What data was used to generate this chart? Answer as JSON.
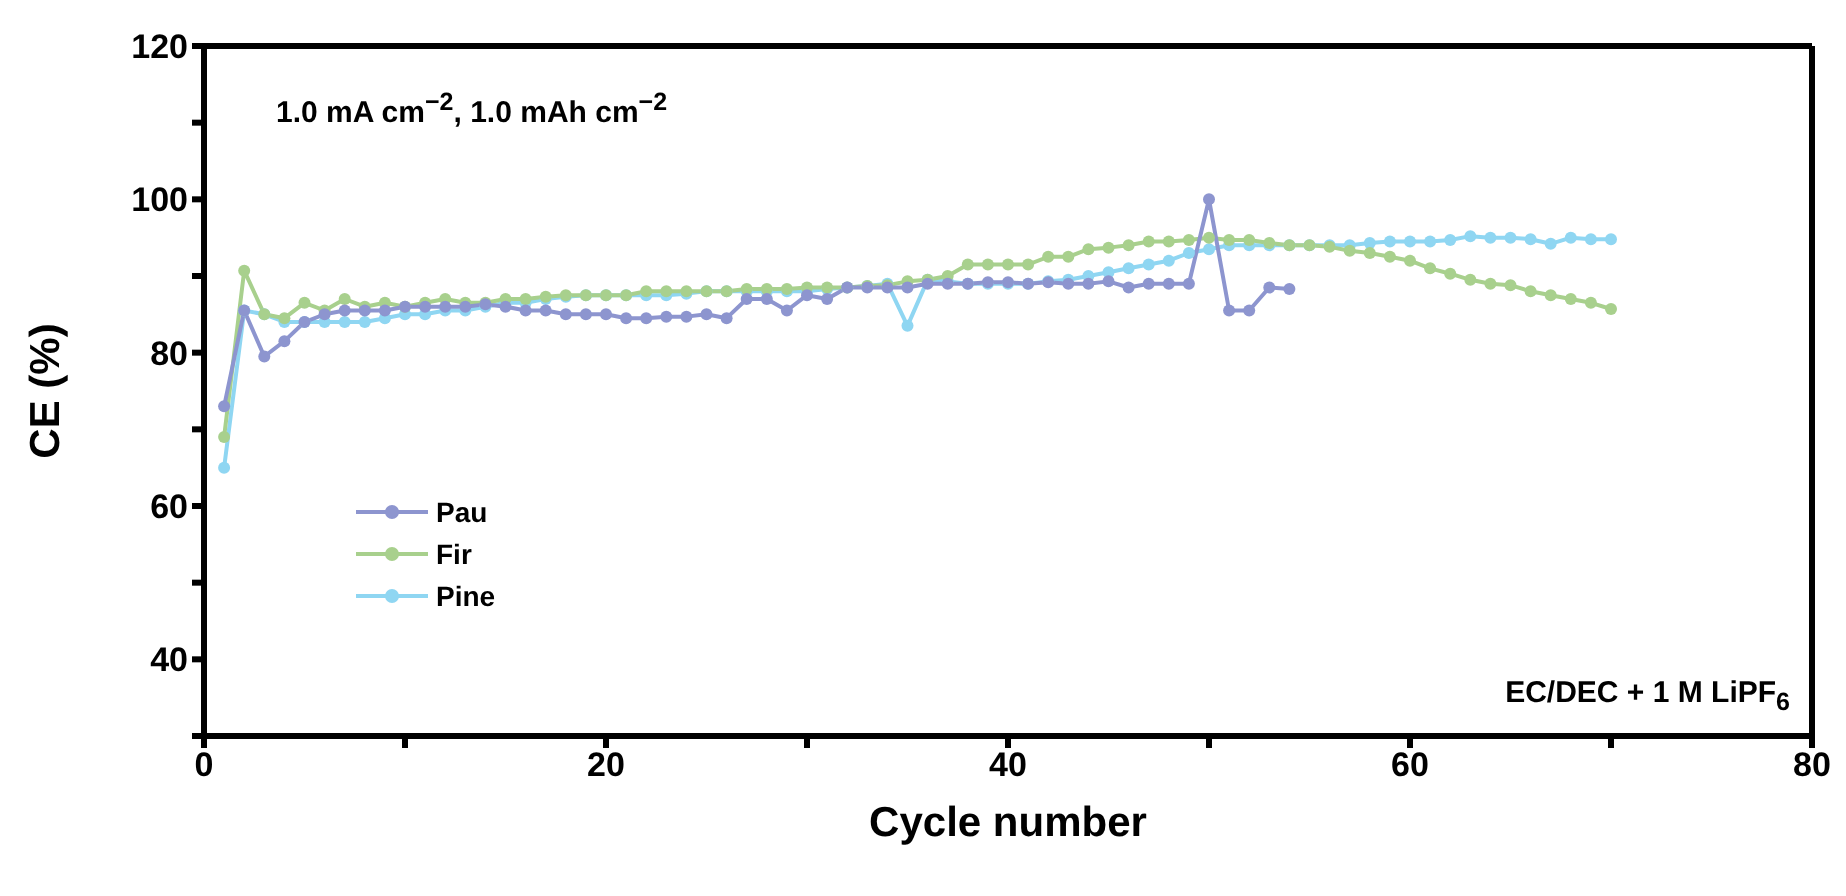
{
  "chart_data": {
    "type": "line",
    "xlabel": "Cycle number",
    "ylabel": "CE (%)",
    "annotations": [
      "1.0 mA cm$^{−2}$, 1.0 mAh cm$^{−2}$",
      "EC/DEC + 1 M LiPF$_{6}$"
    ],
    "x": [
      1,
      2,
      3,
      4,
      5,
      6,
      7,
      8,
      9,
      10,
      11,
      12,
      13,
      14,
      15,
      16,
      17,
      18,
      19,
      20,
      21,
      22,
      23,
      24,
      25,
      26,
      27,
      28,
      29,
      30,
      31,
      32,
      33,
      34,
      35,
      36,
      37,
      38,
      39,
      40,
      41,
      42,
      43,
      44,
      45,
      46,
      47,
      48,
      49,
      50,
      51,
      52,
      53,
      54,
      55,
      56,
      57,
      58,
      59,
      60,
      61,
      62,
      63,
      64,
      65,
      66,
      67,
      68,
      69,
      70
    ],
    "series": [
      {
        "name": "Pau",
        "color": "#8d95cf",
        "values": [
          73,
          85.5,
          79.5,
          81.5,
          84,
          85,
          85.5,
          85.5,
          85.5,
          86,
          86,
          86,
          86,
          86.3,
          86,
          85.5,
          85.5,
          85,
          85,
          85,
          84.5,
          84.5,
          84.7,
          84.7,
          85,
          84.5,
          87,
          87,
          85.5,
          87.5,
          87,
          88.5,
          88.5,
          88.5,
          88.5,
          89,
          89,
          89,
          89.2,
          89.2,
          89,
          89.2,
          89,
          89,
          89.3,
          88.5,
          89,
          89,
          89,
          100,
          85.5,
          85.5,
          88.5,
          88.3,
          null,
          null,
          null,
          null,
          null,
          null,
          null,
          null,
          null,
          null,
          null,
          null,
          null,
          null,
          null,
          null
        ]
      },
      {
        "name": "Fir",
        "color": "#a8d08d",
        "values": [
          69,
          90.7,
          85,
          84.5,
          86.5,
          85.5,
          87,
          86,
          86.5,
          86,
          86.5,
          87,
          86.5,
          86.5,
          87,
          87,
          87.3,
          87.5,
          87.5,
          87.5,
          87.5,
          88,
          88,
          88,
          88,
          88,
          88.3,
          88.3,
          88.3,
          88.5,
          88.5,
          88.5,
          88.7,
          88.8,
          89.3,
          89.5,
          90,
          91.5,
          91.5,
          91.5,
          91.5,
          92.5,
          92.5,
          93.5,
          93.7,
          94,
          94.5,
          94.5,
          94.7,
          95,
          94.7,
          94.7,
          94.3,
          94,
          94,
          93.8,
          93.3,
          93,
          92.5,
          92,
          91,
          90.3,
          89.5,
          89,
          88.8,
          88,
          87.5,
          87,
          86.5,
          85.7
        ]
      },
      {
        "name": "Pine",
        "color": "#8fd6f2",
        "values": [
          65,
          85.5,
          85,
          84,
          84,
          84,
          84,
          84,
          84.5,
          85,
          85,
          85.5,
          85.5,
          86,
          86.5,
          86.5,
          87,
          87.3,
          87.5,
          87.5,
          87.5,
          87.5,
          87.5,
          87.7,
          88,
          88,
          88,
          88,
          88,
          88,
          88.3,
          88.5,
          88.7,
          89,
          83.5,
          89.5,
          89.3,
          89,
          89,
          89,
          89,
          89.3,
          89.5,
          90,
          90.5,
          91,
          91.5,
          92,
          93,
          93.5,
          94,
          94,
          94,
          94,
          94,
          94,
          94,
          94.3,
          94.5,
          94.5,
          94.5,
          94.7,
          95.2,
          95,
          95,
          94.8,
          94.2,
          95,
          94.8,
          94.8
        ]
      }
    ],
    "xlim": [
      0,
      80
    ],
    "xticks": [
      0,
      {
        "value": 10,
        "label": null
      },
      20,
      {
        "value": 30,
        "label": null
      },
      40,
      {
        "value": 50,
        "label": null
      },
      60,
      {
        "value": 70,
        "label": null
      },
      80
    ],
    "ylim": [
      30,
      120
    ],
    "yticks": [
      {
        "value": 30,
        "label": null
      },
      40,
      {
        "value": 50,
        "label": null
      },
      60,
      {
        "value": 70,
        "label": null
      },
      80,
      {
        "value": 90,
        "label": null
      },
      100,
      {
        "value": 110,
        "label": null
      },
      120
    ],
    "grid": false,
    "legend": "left",
    "marker": "circle",
    "line_style": "solid"
  }
}
